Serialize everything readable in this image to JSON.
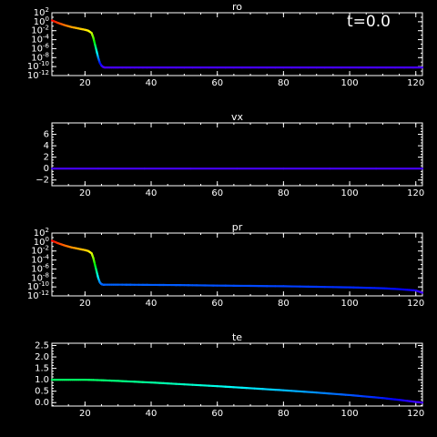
{
  "annotation": "t=0.0",
  "chart_data": [
    {
      "type": "line",
      "title": "ro",
      "xlim": [
        10,
        122
      ],
      "x_ticks": [
        "20",
        "40",
        "60",
        "80",
        "100",
        "120"
      ],
      "y_scale": "log",
      "ylim_exp": [
        -12,
        2
      ],
      "y_tick_exps": [
        2,
        0,
        -2,
        -4,
        -6,
        -8,
        -10,
        -12
      ],
      "y_tick_labels": [
        "10^2",
        "10^0",
        "10^-2",
        "10^-4",
        "10^-6",
        "10^-8",
        "10^-10",
        "10^-12"
      ],
      "series": [
        {
          "x": [
            10,
            12,
            14,
            16,
            18,
            20,
            21,
            22,
            22.5,
            23,
            23.5,
            24,
            24.5,
            25,
            25.5,
            26,
            30,
            40,
            60,
            80,
            100,
            122
          ],
          "y_exp": [
            0.3,
            -0.3,
            -0.8,
            -1.2,
            -1.5,
            -1.8,
            -2.0,
            -2.5,
            -3.5,
            -5.0,
            -6.5,
            -8.0,
            -9.2,
            -9.8,
            -10.1,
            -10.2,
            -10.2,
            -10.2,
            -10.2,
            -10.2,
            -10.2,
            -10.2
          ]
        }
      ]
    },
    {
      "type": "line",
      "title": "vx",
      "xlim": [
        10,
        122
      ],
      "x_ticks": [
        "20",
        "40",
        "60",
        "80",
        "100",
        "120"
      ],
      "y_scale": "linear",
      "ylim": [
        -3,
        8
      ],
      "y_ticks": [
        6,
        4,
        2,
        0,
        -2
      ],
      "y_tick_labels": [
        "6",
        "4",
        "2",
        "0",
        "−2"
      ],
      "series": [
        {
          "x": [
            10,
            122
          ],
          "y": [
            0,
            0
          ]
        }
      ]
    },
    {
      "type": "line",
      "title": "pr",
      "xlim": [
        10,
        122
      ],
      "x_ticks": [
        "20",
        "40",
        "60",
        "80",
        "100",
        "120"
      ],
      "y_scale": "log",
      "ylim_exp": [
        -12,
        2
      ],
      "y_tick_exps": [
        2,
        0,
        -2,
        -4,
        -6,
        -8,
        -10,
        -12
      ],
      "y_tick_labels": [
        "10^2",
        "10^0",
        "10^-2",
        "10^-4",
        "10^-6",
        "10^-8",
        "10^-10",
        "10^-12"
      ],
      "series": [
        {
          "x": [
            10,
            12,
            14,
            16,
            18,
            20,
            21,
            22,
            22.5,
            23,
            23.5,
            24,
            24.5,
            25,
            25.5,
            26,
            30,
            40,
            50,
            60,
            80,
            100,
            110,
            115,
            120,
            122
          ],
          "y_exp": [
            0.3,
            -0.3,
            -0.8,
            -1.2,
            -1.5,
            -1.8,
            -2.0,
            -2.5,
            -3.5,
            -5.0,
            -6.5,
            -8.0,
            -9.0,
            -9.4,
            -9.5,
            -9.5,
            -9.5,
            -9.55,
            -9.6,
            -9.7,
            -9.85,
            -10.1,
            -10.3,
            -10.5,
            -10.8,
            -11.3
          ]
        }
      ]
    },
    {
      "type": "line",
      "title": "te",
      "xlim": [
        10,
        122
      ],
      "x_ticks": [
        "20",
        "40",
        "60",
        "80",
        "100",
        "120"
      ],
      "y_scale": "linear",
      "ylim": [
        -0.15,
        2.6
      ],
      "y_ticks": [
        2.5,
        2.0,
        1.5,
        1.0,
        0.5,
        0.0
      ],
      "y_tick_labels": [
        "2.5",
        "2.0",
        "1.5",
        "1.0",
        "0.5",
        "0.0"
      ],
      "series": [
        {
          "x": [
            10,
            15,
            20,
            25,
            30,
            40,
            50,
            60,
            70,
            80,
            90,
            100,
            110,
            115,
            120,
            122
          ],
          "y": [
            1.0,
            1.0,
            1.0,
            0.98,
            0.95,
            0.88,
            0.8,
            0.72,
            0.63,
            0.54,
            0.44,
            0.33,
            0.2,
            0.12,
            0.03,
            0.0
          ]
        }
      ]
    }
  ]
}
